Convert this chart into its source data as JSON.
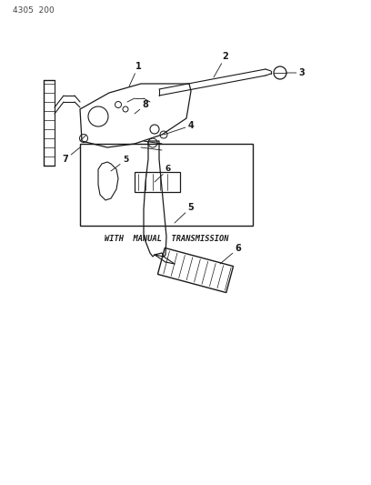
{
  "title": "4305  200",
  "bg": "#ffffff",
  "lc": "#1a1a1a",
  "fig_w": 4.08,
  "fig_h": 5.33,
  "dpi": 100,
  "inset_text": "WITH  MANUAL  TRANSMISSION"
}
